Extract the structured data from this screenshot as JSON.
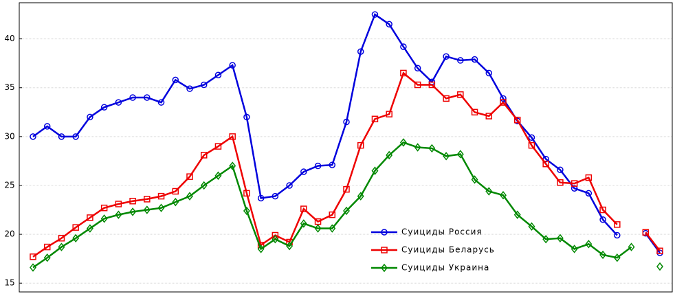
{
  "chart_data": {
    "type": "line",
    "categories": [
      null,
      null,
      null,
      null,
      null,
      null,
      null,
      null,
      null,
      null,
      null,
      null,
      null,
      null,
      null,
      null,
      null,
      null,
      null,
      null,
      null,
      null,
      null,
      null,
      null,
      null,
      null,
      null,
      null,
      null,
      null,
      null,
      null,
      null,
      null,
      null,
      null,
      null,
      null,
      null,
      null,
      null,
      null,
      null,
      null
    ],
    "series": [
      {
        "name": "Суициды Россия",
        "color": "#0000dd",
        "marker": "circle",
        "values": [
          30.0,
          31.05,
          30.0,
          30.0,
          32.0,
          33.0,
          33.5,
          34.0,
          34.0,
          33.5,
          35.8,
          34.9,
          35.3,
          36.3,
          37.3,
          32.0,
          23.7,
          23.9,
          25.0,
          26.4,
          27.0,
          27.1,
          31.5,
          38.7,
          42.5,
          41.5,
          39.2,
          37.0,
          35.6,
          38.2,
          37.8,
          37.9,
          36.5,
          33.9,
          31.6,
          29.9,
          27.7,
          26.6,
          24.7,
          24.2,
          21.5,
          19.9,
          null,
          20.1,
          18.1
        ]
      },
      {
        "name": "Суициды Беларусь",
        "color": "#ee0000",
        "marker": "square",
        "values": [
          17.7,
          18.7,
          19.6,
          20.7,
          21.7,
          22.7,
          23.1,
          23.4,
          23.6,
          23.9,
          24.4,
          25.9,
          28.1,
          29.0,
          30.0,
          24.2,
          18.9,
          19.9,
          19.2,
          22.6,
          21.3,
          22.0,
          24.6,
          29.1,
          31.8,
          32.3,
          36.5,
          35.3,
          35.3,
          33.9,
          34.3,
          32.5,
          32.1,
          33.5,
          31.7,
          29.1,
          27.2,
          25.3,
          25.2,
          25.8,
          22.5,
          21.0,
          null,
          20.2,
          18.3
        ]
      },
      {
        "name": "Суициды Украина",
        "color": "#008800",
        "marker": "diamond",
        "values": [
          16.6,
          17.6,
          18.7,
          19.6,
          20.6,
          21.6,
          22.0,
          22.3,
          22.5,
          22.7,
          23.3,
          23.9,
          25.0,
          26.0,
          27.0,
          22.4,
          18.5,
          19.5,
          18.8,
          21.1,
          20.6,
          20.6,
          22.4,
          23.9,
          26.5,
          28.1,
          29.4,
          28.9,
          28.8,
          28.0,
          28.2,
          25.6,
          24.4,
          24.0,
          22.0,
          20.8,
          19.5,
          19.6,
          18.5,
          19.0,
          17.9,
          17.6,
          18.7,
          null,
          16.7
        ]
      }
    ],
    "ylim": [
      14.1,
      43.7
    ],
    "yticks": [
      15,
      20,
      25,
      30,
      35,
      40
    ],
    "grid": true
  }
}
